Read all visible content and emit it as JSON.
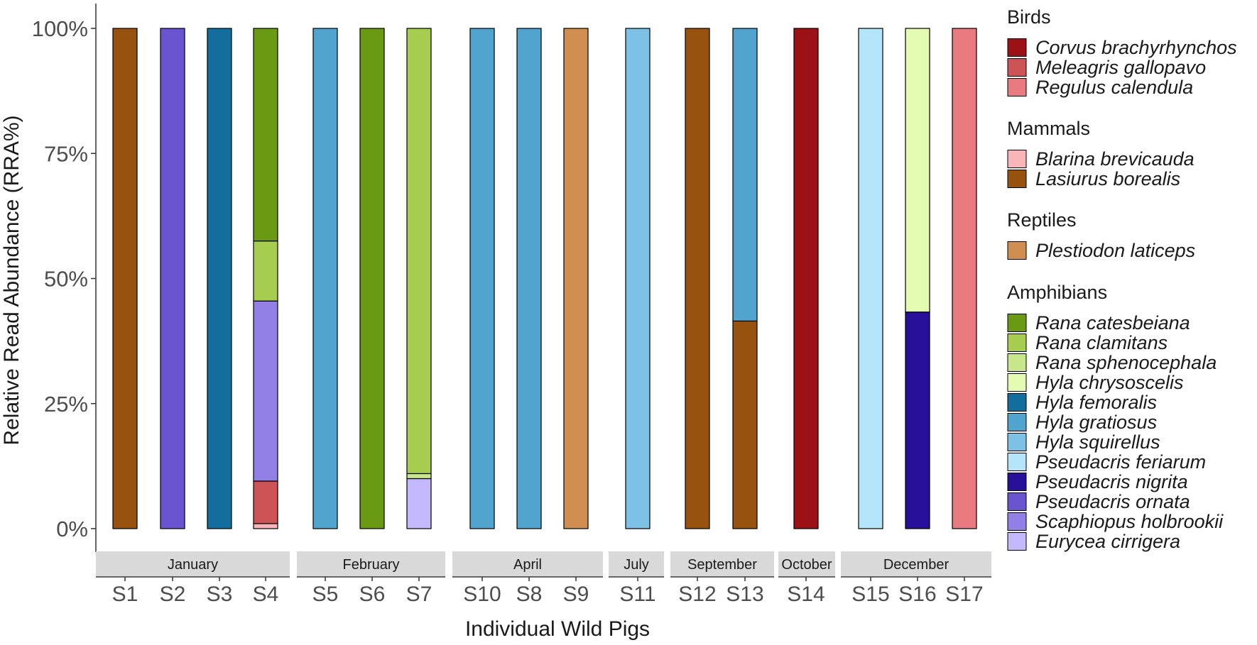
{
  "chart_data": {
    "type": "bar",
    "stacked": true,
    "xlabel": "Individual Wild Pigs",
    "ylabel": "Relative Read Abundance (RRA%)",
    "ylim": [
      0,
      100
    ],
    "yticks": [
      "0%",
      "25%",
      "50%",
      "75%",
      "100%"
    ],
    "ytick_values": [
      0,
      25,
      50,
      75,
      100
    ],
    "grid": false,
    "legend_position": "right",
    "panels": [
      {
        "label": "January",
        "samples": [
          "S1",
          "S2",
          "S3",
          "S4"
        ]
      },
      {
        "label": "February",
        "samples": [
          "S5",
          "S6",
          "S7"
        ]
      },
      {
        "label": "April",
        "samples": [
          "S10",
          "S8",
          "S9"
        ]
      },
      {
        "label": "July",
        "samples": [
          "S11"
        ]
      },
      {
        "label": "September",
        "samples": [
          "S12",
          "S13"
        ]
      },
      {
        "label": "October",
        "samples": [
          "S14"
        ]
      },
      {
        "label": "December",
        "samples": [
          "S15",
          "S16",
          "S17"
        ]
      }
    ],
    "legend_groups": [
      {
        "title": "Birds",
        "species": [
          {
            "name": "Corvus brachyrhynchos",
            "color": "#9b1116"
          },
          {
            "name": "Meleagris gallopavo",
            "color": "#cd5357"
          },
          {
            "name": "Regulus calendula",
            "color": "#e97b80"
          }
        ]
      },
      {
        "title": "Mammals",
        "species": [
          {
            "name": "Blarina brevicauda",
            "color": "#f8b6b8"
          },
          {
            "name": "Lasiurus borealis",
            "color": "#985210"
          }
        ]
      },
      {
        "title": "Reptiles",
        "species": [
          {
            "name": "Plestiodon laticeps",
            "color": "#d08f51"
          }
        ]
      },
      {
        "title": "Amphibians",
        "species": [
          {
            "name": "Rana catesbeiana",
            "color": "#6a9a13"
          },
          {
            "name": "Rana clamitans",
            "color": "#a6cc50"
          },
          {
            "name": "Rana sphenocephala",
            "color": "#c8e68b"
          },
          {
            "name": "Hyla chrysoscelis",
            "color": "#e4fcb1"
          },
          {
            "name": "Hyla femoralis",
            "color": "#136d9d"
          },
          {
            "name": "Hyla gratiosus",
            "color": "#50a4cd"
          },
          {
            "name": "Hyla squirellus",
            "color": "#7ec1e6"
          },
          {
            "name": "Pseudacris feriarum",
            "color": "#b4e5fa"
          },
          {
            "name": "Pseudacris nigrita",
            "color": "#28109a"
          },
          {
            "name": "Pseudacris ornata",
            "color": "#6a54d0"
          },
          {
            "name": "Scaphiopus holbrookii",
            "color": "#9380e6"
          },
          {
            "name": "Eurycea cirrigera",
            "color": "#c5b9fe"
          }
        ]
      }
    ],
    "series": [
      {
        "sample": "S1",
        "segments": [
          {
            "species": "Lasiurus borealis",
            "value": 100
          }
        ]
      },
      {
        "sample": "S2",
        "segments": [
          {
            "species": "Pseudacris ornata",
            "value": 100
          }
        ]
      },
      {
        "sample": "S3",
        "segments": [
          {
            "species": "Hyla femoralis",
            "value": 100
          }
        ]
      },
      {
        "sample": "S4",
        "segments": [
          {
            "species": "Blarina brevicauda",
            "value": 1
          },
          {
            "species": "Meleagris gallopavo",
            "value": 8.5
          },
          {
            "species": "Scaphiopus holbrookii",
            "value": 36
          },
          {
            "species": "Rana clamitans",
            "value": 12
          },
          {
            "species": "Rana catesbeiana",
            "value": 42.5
          }
        ]
      },
      {
        "sample": "S5",
        "segments": [
          {
            "species": "Hyla gratiosus",
            "value": 100
          }
        ]
      },
      {
        "sample": "S6",
        "segments": [
          {
            "species": "Rana catesbeiana",
            "value": 100
          }
        ]
      },
      {
        "sample": "S7",
        "segments": [
          {
            "species": "Eurycea cirrigera",
            "value": 10
          },
          {
            "species": "Rana sphenocephala",
            "value": 1
          },
          {
            "species": "Rana clamitans",
            "value": 89
          }
        ]
      },
      {
        "sample": "S10",
        "segments": [
          {
            "species": "Hyla gratiosus",
            "value": 100
          }
        ]
      },
      {
        "sample": "S8",
        "segments": [
          {
            "species": "Hyla gratiosus",
            "value": 100
          }
        ]
      },
      {
        "sample": "S9",
        "segments": [
          {
            "species": "Plestiodon laticeps",
            "value": 100
          }
        ]
      },
      {
        "sample": "S11",
        "segments": [
          {
            "species": "Hyla squirellus",
            "value": 100
          }
        ]
      },
      {
        "sample": "S12",
        "segments": [
          {
            "species": "Lasiurus borealis",
            "value": 100
          }
        ]
      },
      {
        "sample": "S13",
        "segments": [
          {
            "species": "Lasiurus borealis",
            "value": 41.5
          },
          {
            "species": "Hyla gratiosus",
            "value": 58.5
          }
        ]
      },
      {
        "sample": "S14",
        "segments": [
          {
            "species": "Corvus brachyrhynchos",
            "value": 100
          }
        ]
      },
      {
        "sample": "S15",
        "segments": [
          {
            "species": "Pseudacris feriarum",
            "value": 100
          }
        ]
      },
      {
        "sample": "S16",
        "segments": [
          {
            "species": "Pseudacris nigrita",
            "value": 43.3
          },
          {
            "species": "Hyla chrysoscelis",
            "value": 56.7
          }
        ]
      },
      {
        "sample": "S17",
        "segments": [
          {
            "species": "Regulus calendula",
            "value": 100
          }
        ]
      }
    ]
  }
}
